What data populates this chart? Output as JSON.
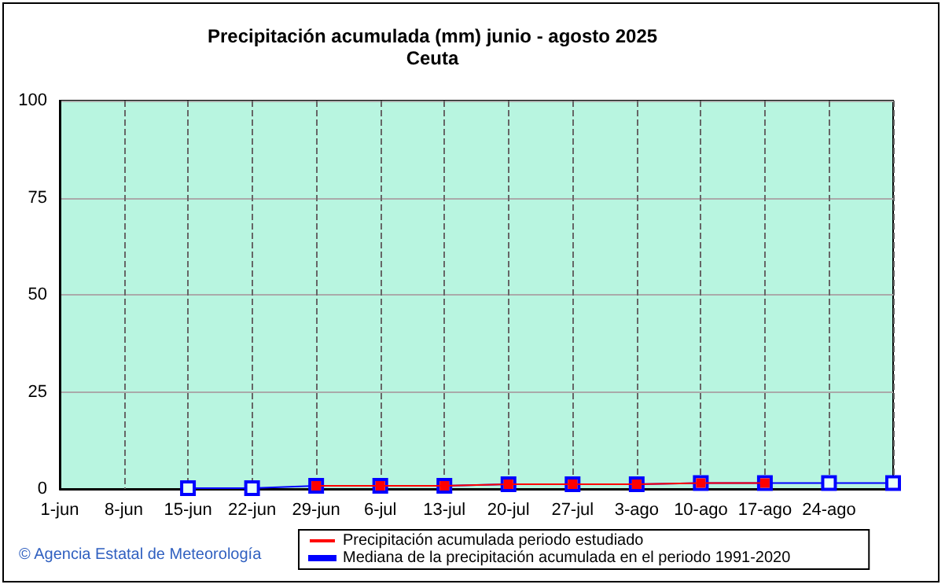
{
  "chart_data": {
    "type": "line",
    "title": "Precipitación acumulada (mm) junio - agosto 2025",
    "subtitle": "Ceuta",
    "categories": [
      "1-jun",
      "8-jun",
      "15-jun",
      "22-jun",
      "29-jun",
      "6-jul",
      "13-jul",
      "20-jul",
      "27-jul",
      "3-ago",
      "10-ago",
      "17-ago",
      "24-ago",
      null
    ],
    "series": [
      {
        "name": "Mediana de la precipitación acumulada en el periodo 1991-2020",
        "color": "#0000ff",
        "values": [
          null,
          null,
          0.2,
          0.2,
          0.8,
          0.8,
          0.8,
          1.2,
          1.2,
          1.2,
          1.5,
          1.5,
          1.5,
          1.5
        ]
      },
      {
        "name": "Precipitación acumulada periodo estudiado",
        "color": "#ff0000",
        "values": [
          null,
          null,
          null,
          null,
          0.8,
          0.8,
          0.8,
          1.2,
          1.2,
          1.2,
          1.5,
          1.5,
          null,
          null
        ]
      }
    ],
    "ylim": [
      0,
      100
    ],
    "yticks": [
      0,
      25,
      50,
      75,
      100
    ],
    "grid": true,
    "legend": "bottom",
    "marker": "square",
    "line_style": "solid",
    "annotations": [
      "© Agencia Estatal de Meteorología"
    ]
  }
}
